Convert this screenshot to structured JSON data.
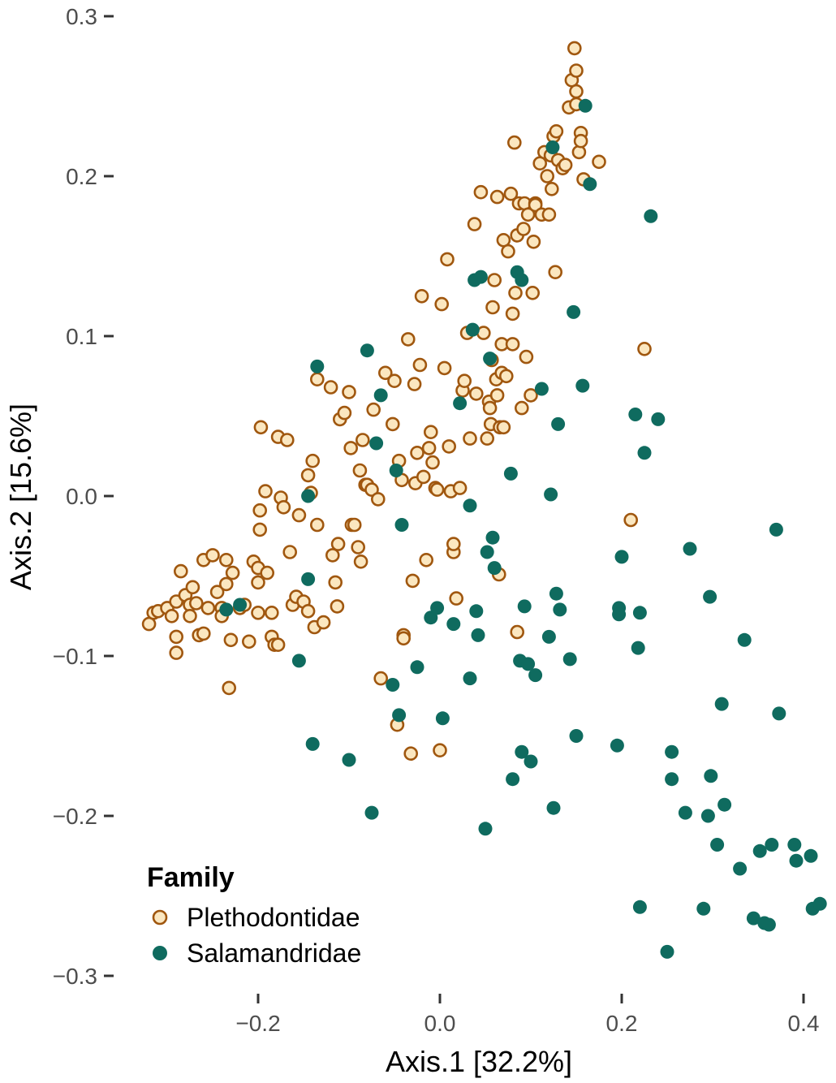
{
  "chart_data": {
    "type": "scatter",
    "title": "",
    "xlabel": "Axis.1   [32.2%]",
    "ylabel": "Axis.2   [15.6%]",
    "xlim": [
      -0.325,
      0.42
    ],
    "ylim": [
      -0.31,
      0.305
    ],
    "x_ticks": [
      -0.2,
      0.0,
      0.2,
      0.4
    ],
    "x_tick_labels": [
      "−0.2",
      "0.0",
      "0.2",
      "0.4"
    ],
    "y_ticks": [
      -0.3,
      -0.2,
      -0.1,
      0.0,
      0.1,
      0.2,
      0.3
    ],
    "y_tick_labels": [
      "−0.3",
      "−0.2",
      "−0.1",
      "0.0",
      "0.1",
      "0.2",
      "0.3"
    ],
    "grid": false,
    "legend": {
      "title": "Family",
      "position": "bottom-left"
    },
    "series": [
      {
        "name": "Plethodontidae",
        "marker": "hollow-circle",
        "stroke": "#a0570f",
        "fill": "#fbe7c0",
        "points": [
          [
            -0.32,
            -0.08
          ],
          [
            -0.315,
            -0.073
          ],
          [
            -0.31,
            -0.072
          ],
          [
            -0.3,
            -0.07
          ],
          [
            -0.295,
            -0.075
          ],
          [
            -0.29,
            -0.088
          ],
          [
            -0.29,
            -0.098
          ],
          [
            -0.29,
            -0.066
          ],
          [
            -0.285,
            -0.047
          ],
          [
            -0.28,
            -0.062
          ],
          [
            -0.275,
            -0.068
          ],
          [
            -0.275,
            -0.075
          ],
          [
            -0.272,
            -0.057
          ],
          [
            -0.268,
            -0.067
          ],
          [
            -0.265,
            -0.087
          ],
          [
            -0.26,
            -0.086
          ],
          [
            -0.26,
            -0.04
          ],
          [
            -0.255,
            -0.07
          ],
          [
            -0.25,
            -0.037
          ],
          [
            -0.245,
            -0.06
          ],
          [
            -0.24,
            -0.07
          ],
          [
            -0.24,
            -0.075
          ],
          [
            -0.235,
            -0.055
          ],
          [
            -0.235,
            -0.04
          ],
          [
            -0.232,
            -0.12
          ],
          [
            -0.23,
            -0.09
          ],
          [
            -0.228,
            -0.048
          ],
          [
            -0.22,
            -0.07
          ],
          [
            -0.215,
            -0.068
          ],
          [
            -0.21,
            -0.091
          ],
          [
            -0.205,
            -0.041
          ],
          [
            -0.2,
            -0.045
          ],
          [
            -0.2,
            -0.054
          ],
          [
            -0.2,
            -0.073
          ],
          [
            -0.198,
            -0.021
          ],
          [
            -0.198,
            -0.009
          ],
          [
            -0.197,
            0.043
          ],
          [
            -0.192,
            0.003
          ],
          [
            -0.19,
            -0.048
          ],
          [
            -0.185,
            -0.073
          ],
          [
            -0.185,
            -0.088
          ],
          [
            -0.182,
            -0.093
          ],
          [
            -0.178,
            -0.093
          ],
          [
            -0.178,
            0.037
          ],
          [
            -0.175,
            -0.001
          ],
          [
            -0.172,
            -0.007
          ],
          [
            -0.168,
            0.035
          ],
          [
            -0.165,
            -0.035
          ],
          [
            -0.162,
            -0.068
          ],
          [
            -0.158,
            -0.063
          ],
          [
            -0.155,
            -0.012
          ],
          [
            -0.15,
            -0.066
          ],
          [
            -0.145,
            -0.072
          ],
          [
            -0.145,
            0.013
          ],
          [
            -0.142,
            0.002
          ],
          [
            -0.14,
            0.022
          ],
          [
            -0.138,
            -0.082
          ],
          [
            -0.135,
            -0.018
          ],
          [
            -0.135,
            0.073
          ],
          [
            -0.128,
            -0.079
          ],
          [
            -0.12,
            0.068
          ],
          [
            -0.118,
            -0.037
          ],
          [
            -0.115,
            -0.054
          ],
          [
            -0.113,
            -0.069
          ],
          [
            -0.112,
            -0.03
          ],
          [
            -0.11,
            0.048
          ],
          [
            -0.105,
            0.052
          ],
          [
            -0.1,
            0.065
          ],
          [
            -0.098,
            0.03
          ],
          [
            -0.097,
            -0.018
          ],
          [
            -0.094,
            -0.018
          ],
          [
            -0.09,
            -0.032
          ],
          [
            -0.088,
            0.016
          ],
          [
            -0.087,
            -0.041
          ],
          [
            -0.085,
            0.035
          ],
          [
            -0.082,
            0.007
          ],
          [
            -0.08,
            0.007
          ],
          [
            -0.075,
            0.004
          ],
          [
            -0.073,
            0.054
          ],
          [
            -0.068,
            -0.002
          ],
          [
            -0.065,
            -0.114
          ],
          [
            -0.06,
            0.077
          ],
          [
            -0.052,
            0.045
          ],
          [
            -0.05,
            0.072
          ],
          [
            -0.047,
            -0.143
          ],
          [
            -0.045,
            0.022
          ],
          [
            -0.042,
            0.01
          ],
          [
            -0.04,
            -0.087
          ],
          [
            -0.04,
            -0.089
          ],
          [
            -0.035,
            0.098
          ],
          [
            -0.032,
            -0.161
          ],
          [
            -0.03,
            -0.053
          ],
          [
            -0.028,
            0.07
          ],
          [
            -0.027,
            0.008
          ],
          [
            -0.025,
            0.027
          ],
          [
            -0.022,
            0.082
          ],
          [
            -0.02,
            0.125
          ],
          [
            -0.018,
            0.012
          ],
          [
            -0.015,
            -0.04
          ],
          [
            -0.012,
            0.03
          ],
          [
            -0.01,
            0.04
          ],
          [
            -0.008,
            0.021
          ],
          [
            -0.005,
            0.005
          ],
          [
            -0.003,
            0.004
          ],
          [
            0.0,
            -0.159
          ],
          [
            0.002,
            0.12
          ],
          [
            0.005,
            0.08
          ],
          [
            0.008,
            0.148
          ],
          [
            0.01,
            0.031
          ],
          [
            0.012,
            0.003
          ],
          [
            0.015,
            -0.035
          ],
          [
            0.015,
            -0.03
          ],
          [
            0.018,
            -0.064
          ],
          [
            0.022,
            0.005
          ],
          [
            0.025,
            0.066
          ],
          [
            0.027,
            0.072
          ],
          [
            0.03,
            0.102
          ],
          [
            0.033,
            0.036
          ],
          [
            0.038,
            0.17
          ],
          [
            0.04,
            0.064
          ],
          [
            0.045,
            0.19
          ],
          [
            0.048,
            0.102
          ],
          [
            0.052,
            0.036
          ],
          [
            0.054,
            0.059
          ],
          [
            0.055,
            0.055
          ],
          [
            0.056,
            0.045
          ],
          [
            0.057,
            0.085
          ],
          [
            0.058,
            0.118
          ],
          [
            0.06,
            0.135
          ],
          [
            0.062,
            0.073
          ],
          [
            0.063,
            0.187
          ],
          [
            0.063,
            0.063
          ],
          [
            0.065,
            -0.049
          ],
          [
            0.066,
            0.043
          ],
          [
            0.068,
            0.095
          ],
          [
            0.068,
            0.077
          ],
          [
            0.07,
            0.16
          ],
          [
            0.07,
            0.043
          ],
          [
            0.073,
            0.075
          ],
          [
            0.075,
            0.153
          ],
          [
            0.078,
            0.189
          ],
          [
            0.08,
            0.095
          ],
          [
            0.08,
            0.114
          ],
          [
            0.082,
            0.221
          ],
          [
            0.083,
            0.127
          ],
          [
            0.085,
            -0.085
          ],
          [
            0.085,
            0.163
          ],
          [
            0.087,
            0.183
          ],
          [
            0.09,
            0.055
          ],
          [
            0.092,
            0.167
          ],
          [
            0.093,
            0.183
          ],
          [
            0.095,
            0.087
          ],
          [
            0.097,
            0.176
          ],
          [
            0.1,
            0.063
          ],
          [
            0.102,
            0.127
          ],
          [
            0.103,
            0.159
          ],
          [
            0.105,
            0.183
          ],
          [
            0.105,
            0.182
          ],
          [
            0.11,
            0.208
          ],
          [
            0.112,
            0.176
          ],
          [
            0.115,
            0.215
          ],
          [
            0.118,
            0.2
          ],
          [
            0.12,
            0.176
          ],
          [
            0.122,
            0.213
          ],
          [
            0.123,
            0.192
          ],
          [
            0.125,
            0.225
          ],
          [
            0.127,
            0.14
          ],
          [
            0.128,
            0.228
          ],
          [
            0.13,
            0.21
          ],
          [
            0.135,
            0.205
          ],
          [
            0.138,
            0.207
          ],
          [
            0.142,
            0.243
          ],
          [
            0.145,
            0.26
          ],
          [
            0.148,
            0.28
          ],
          [
            0.15,
            0.253
          ],
          [
            0.15,
            0.266
          ],
          [
            0.15,
            0.245
          ],
          [
            0.153,
            0.215
          ],
          [
            0.155,
            0.227
          ],
          [
            0.155,
            0.222
          ],
          [
            0.158,
            0.198
          ],
          [
            0.175,
            0.209
          ],
          [
            0.21,
            -0.015
          ],
          [
            0.225,
            0.092
          ]
        ]
      },
      {
        "name": "Salamandridae",
        "marker": "filled-circle",
        "stroke": "#0f6b5f",
        "fill": "#0f6b5f",
        "points": [
          [
            -0.235,
            -0.071
          ],
          [
            -0.22,
            -0.068
          ],
          [
            -0.155,
            -0.103
          ],
          [
            -0.145,
            0.0
          ],
          [
            -0.145,
            -0.052
          ],
          [
            -0.14,
            -0.155
          ],
          [
            -0.135,
            0.081
          ],
          [
            -0.1,
            -0.165
          ],
          [
            -0.08,
            0.091
          ],
          [
            -0.075,
            -0.198
          ],
          [
            -0.07,
            0.033
          ],
          [
            -0.065,
            0.063
          ],
          [
            -0.052,
            -0.118
          ],
          [
            -0.048,
            0.016
          ],
          [
            -0.045,
            -0.137
          ],
          [
            -0.042,
            -0.018
          ],
          [
            -0.025,
            -0.107
          ],
          [
            -0.01,
            -0.076
          ],
          [
            -0.003,
            -0.07
          ],
          [
            0.003,
            -0.139
          ],
          [
            0.015,
            -0.08
          ],
          [
            0.022,
            0.058
          ],
          [
            0.033,
            -0.006
          ],
          [
            0.033,
            -0.114
          ],
          [
            0.036,
            0.104
          ],
          [
            0.038,
            0.135
          ],
          [
            0.04,
            -0.072
          ],
          [
            0.042,
            -0.087
          ],
          [
            0.045,
            0.137
          ],
          [
            0.05,
            -0.208
          ],
          [
            0.052,
            -0.035
          ],
          [
            0.055,
            0.086
          ],
          [
            0.058,
            -0.026
          ],
          [
            0.06,
            -0.045
          ],
          [
            0.078,
            0.014
          ],
          [
            0.08,
            -0.177
          ],
          [
            0.085,
            0.14
          ],
          [
            0.088,
            -0.103
          ],
          [
            0.09,
            -0.16
          ],
          [
            0.09,
            0.135
          ],
          [
            0.093,
            -0.069
          ],
          [
            0.097,
            -0.105
          ],
          [
            0.1,
            -0.166
          ],
          [
            0.105,
            -0.112
          ],
          [
            0.112,
            0.067
          ],
          [
            0.12,
            -0.088
          ],
          [
            0.122,
            0.001
          ],
          [
            0.124,
            0.218
          ],
          [
            0.125,
            -0.195
          ],
          [
            0.128,
            -0.061
          ],
          [
            0.13,
            0.045
          ],
          [
            0.132,
            -0.071
          ],
          [
            0.143,
            -0.102
          ],
          [
            0.147,
            0.115
          ],
          [
            0.15,
            -0.15
          ],
          [
            0.157,
            0.069
          ],
          [
            0.16,
            0.244
          ],
          [
            0.165,
            0.195
          ],
          [
            0.195,
            -0.156
          ],
          [
            0.197,
            -0.07
          ],
          [
            0.197,
            -0.074
          ],
          [
            0.2,
            -0.038
          ],
          [
            0.215,
            0.051
          ],
          [
            0.218,
            -0.095
          ],
          [
            0.22,
            -0.073
          ],
          [
            0.22,
            -0.257
          ],
          [
            0.225,
            0.027
          ],
          [
            0.232,
            0.175
          ],
          [
            0.24,
            0.048
          ],
          [
            0.25,
            -0.285
          ],
          [
            0.255,
            -0.16
          ],
          [
            0.255,
            -0.177
          ],
          [
            0.27,
            -0.198
          ],
          [
            0.275,
            -0.033
          ],
          [
            0.29,
            -0.258
          ],
          [
            0.295,
            -0.2
          ],
          [
            0.297,
            -0.063
          ],
          [
            0.298,
            -0.175
          ],
          [
            0.305,
            -0.218
          ],
          [
            0.31,
            -0.13
          ],
          [
            0.313,
            -0.193
          ],
          [
            0.33,
            -0.233
          ],
          [
            0.335,
            -0.09
          ],
          [
            0.345,
            -0.264
          ],
          [
            0.352,
            -0.222
          ],
          [
            0.357,
            -0.267
          ],
          [
            0.362,
            -0.268
          ],
          [
            0.365,
            -0.218
          ],
          [
            0.37,
            -0.021
          ],
          [
            0.373,
            -0.136
          ],
          [
            0.39,
            -0.218
          ],
          [
            0.392,
            -0.228
          ],
          [
            0.408,
            -0.225
          ],
          [
            0.41,
            -0.258
          ],
          [
            0.418,
            -0.255
          ]
        ]
      }
    ]
  }
}
